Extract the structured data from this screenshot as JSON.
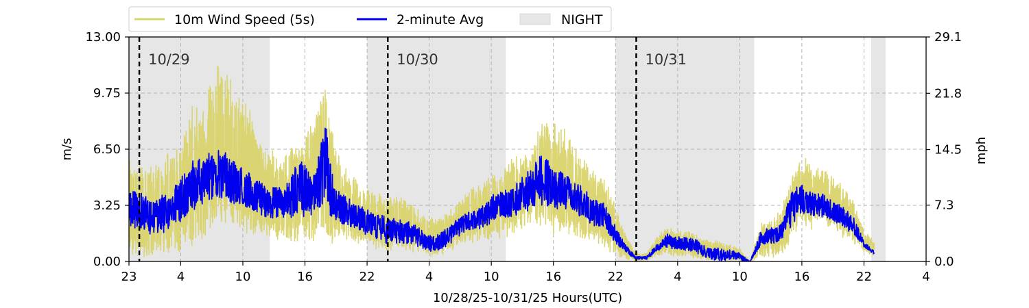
{
  "colors": {
    "gust": "#d9d46b",
    "avg": "#0000ee",
    "night": "#e6e6e6",
    "grid": "#b0b0b0",
    "day_marker": "#000000"
  },
  "chart_data": {
    "type": "line",
    "legend": {
      "placement": "top-left-outside",
      "entries": [
        "10m Wind Speed (5s)",
        "2-minute Avg",
        "NIGHT"
      ]
    },
    "xlabel": "10/28/25-10/31/25  Hours(UTC)",
    "ylabel_left": "m/s",
    "ylabel_right": "mph",
    "x_unit": "hours since 10/28 00:00 UTC",
    "xlim": [
      23,
      100
    ],
    "ylim": [
      0,
      13
    ],
    "ylim_right": [
      0,
      29.1
    ],
    "x_ticks": [
      23,
      28,
      34,
      40,
      46,
      52,
      58,
      64,
      70,
      76,
      82,
      88,
      94,
      100
    ],
    "x_tick_labels": [
      "23",
      "4",
      "10",
      "16",
      "22",
      "4",
      "10",
      "16",
      "22",
      "4",
      "10",
      "16",
      "22",
      "4"
    ],
    "y_ticks": [
      0,
      3.25,
      6.5,
      9.75,
      13
    ],
    "y_tick_labels": [
      "0.00",
      "3.25",
      "6.50",
      "9.75",
      "13.00"
    ],
    "y_right_ticks": [
      0,
      7.3,
      14.5,
      21.8,
      29.1
    ],
    "y_right_tick_labels": [
      "0.0",
      "7.3",
      "14.5",
      "21.8",
      "29.1"
    ],
    "grid": true,
    "night_periods": [
      [
        23,
        36.6
      ],
      [
        46,
        59.4
      ],
      [
        70,
        83.4
      ],
      [
        94.7,
        96.1
      ]
    ],
    "day_markers": [
      {
        "x": 24,
        "label": "10/29"
      },
      {
        "x": 48,
        "label": "10/30"
      },
      {
        "x": 72,
        "label": "10/31"
      }
    ],
    "series": [
      {
        "name": "10m Wind Speed (5s)",
        "style": "band",
        "x": [
          23,
          24,
          25,
          26,
          27,
          28,
          29,
          30,
          31,
          32,
          33,
          34,
          35,
          36,
          37,
          38,
          39,
          40,
          41,
          42,
          43,
          44,
          45,
          46,
          47,
          48,
          49,
          50,
          51,
          52,
          53,
          54,
          55,
          56,
          57,
          58,
          59,
          60,
          61,
          62,
          63,
          64,
          65,
          66,
          67,
          68,
          69,
          70,
          71,
          72,
          73,
          74,
          75,
          76,
          77,
          78,
          79,
          80,
          81,
          82,
          83,
          84,
          85,
          86,
          87,
          88,
          89,
          90,
          91,
          92,
          93,
          94,
          95
        ],
        "low": [
          0.3,
          0.2,
          0.2,
          0.5,
          0.5,
          0.5,
          0.8,
          1.0,
          1.5,
          2.0,
          2.0,
          1.5,
          1.2,
          1.5,
          1.2,
          1.2,
          1.0,
          1.0,
          0.8,
          0.8,
          1.0,
          1.2,
          1.0,
          0.8,
          0.7,
          0.5,
          0.6,
          0.6,
          0.5,
          0.2,
          0.3,
          0.5,
          0.8,
          1.0,
          0.8,
          1.2,
          1.2,
          1.3,
          1.8,
          2.0,
          1.8,
          1.5,
          1.4,
          1.2,
          1.2,
          1.0,
          0.7,
          0.3,
          0.1,
          0.0,
          0.0,
          0.3,
          0.4,
          0.2,
          0.3,
          0.1,
          0.0,
          0.0,
          0.0,
          0.0,
          0.0,
          0.2,
          0.2,
          0.3,
          1.2,
          2.0,
          1.8,
          2.2,
          1.8,
          1.2,
          1.0,
          0.5,
          0.3
        ],
        "high": [
          6.5,
          5.8,
          5.5,
          6.0,
          6.5,
          7.5,
          9.0,
          9.5,
          11.2,
          11.8,
          10.5,
          9.5,
          8.5,
          6.5,
          6.5,
          6.2,
          7.0,
          7.5,
          9.0,
          10.2,
          6.5,
          5.5,
          5.0,
          4.2,
          4.0,
          3.8,
          3.8,
          3.5,
          3.0,
          2.6,
          2.6,
          3.0,
          3.6,
          4.2,
          4.6,
          5.0,
          5.6,
          6.0,
          6.2,
          6.8,
          8.5,
          8.0,
          7.8,
          6.8,
          6.0,
          5.2,
          5.0,
          3.2,
          1.6,
          0.5,
          0.5,
          1.5,
          2.0,
          1.8,
          1.8,
          1.5,
          1.2,
          1.2,
          1.0,
          0.8,
          0.0,
          2.2,
          2.6,
          3.0,
          5.0,
          6.5,
          5.6,
          5.5,
          5.0,
          4.4,
          3.6,
          1.8,
          1.2
        ]
      },
      {
        "name": "2-minute Avg",
        "style": "line",
        "x": [
          23,
          24,
          25,
          26,
          27,
          28,
          29,
          30,
          31,
          32,
          33,
          34,
          35,
          36,
          37,
          38,
          39,
          40,
          41,
          42,
          43,
          44,
          45,
          46,
          47,
          48,
          49,
          50,
          51,
          52,
          53,
          54,
          55,
          56,
          57,
          58,
          59,
          60,
          61,
          62,
          63,
          64,
          65,
          66,
          67,
          68,
          69,
          70,
          71,
          72,
          73,
          74,
          75,
          76,
          77,
          78,
          79,
          80,
          81,
          82,
          83,
          84,
          85,
          86,
          87,
          88,
          89,
          90,
          91,
          92,
          93,
          94,
          95
        ],
        "low": [
          1.8,
          1.8,
          1.5,
          1.5,
          1.8,
          2.2,
          2.8,
          3.2,
          3.5,
          3.5,
          3.2,
          3.0,
          2.8,
          2.5,
          2.5,
          2.4,
          2.5,
          2.5,
          2.8,
          3.0,
          2.2,
          2.0,
          1.8,
          1.5,
          1.2,
          1.0,
          1.0,
          1.0,
          0.8,
          0.5,
          0.6,
          1.0,
          1.5,
          1.8,
          1.8,
          2.2,
          2.5,
          2.5,
          2.8,
          3.0,
          3.2,
          3.0,
          3.0,
          2.8,
          2.4,
          2.0,
          1.8,
          1.0,
          0.5,
          0.1,
          0.1,
          0.6,
          0.8,
          0.6,
          0.6,
          0.4,
          0.1,
          0.0,
          0.1,
          0.0,
          0.0,
          0.8,
          1.0,
          1.2,
          2.0,
          2.8,
          2.5,
          2.5,
          2.3,
          2.0,
          1.5,
          0.8,
          0.4
        ],
        "high": [
          4.0,
          4.2,
          3.8,
          3.8,
          4.0,
          5.0,
          5.8,
          6.0,
          6.5,
          6.5,
          6.0,
          5.5,
          5.0,
          4.5,
          4.5,
          4.2,
          5.5,
          6.0,
          5.5,
          8.0,
          4.2,
          3.8,
          3.4,
          3.0,
          2.8,
          2.6,
          2.5,
          2.4,
          2.0,
          1.6,
          1.6,
          2.2,
          2.6,
          3.0,
          3.2,
          3.8,
          4.2,
          4.2,
          5.0,
          5.5,
          6.6,
          5.5,
          5.2,
          4.8,
          4.2,
          3.6,
          3.4,
          2.0,
          1.0,
          0.3,
          0.3,
          1.0,
          1.6,
          1.5,
          1.5,
          1.2,
          0.8,
          0.8,
          0.7,
          0.5,
          0.0,
          1.8,
          2.0,
          2.2,
          4.2,
          4.5,
          4.0,
          4.0,
          3.5,
          3.2,
          2.6,
          1.2,
          0.6
        ]
      }
    ]
  }
}
